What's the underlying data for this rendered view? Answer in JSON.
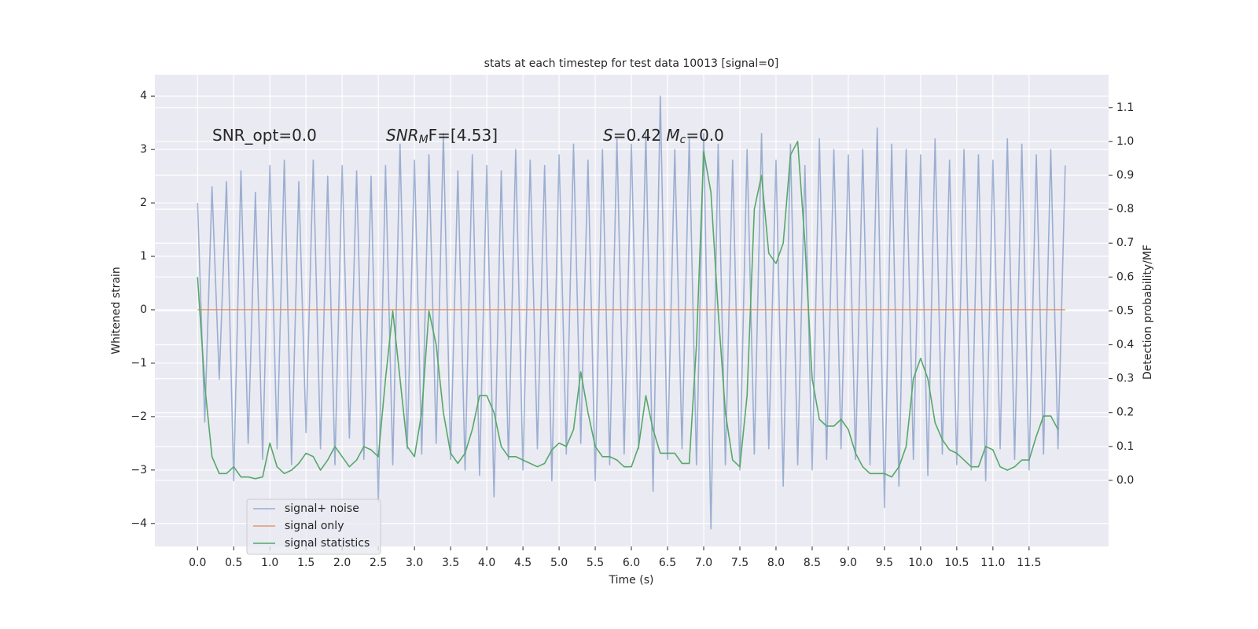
{
  "chart_data": {
    "type": "line",
    "title": "stats at each timestep for test data 10013 [signal=0]",
    "xlabel": "Time (s)",
    "ylabel": "Whitened strain",
    "y2label": "Detection probability/MF",
    "xlim": [
      -0.59,
      12.6
    ],
    "ylim": [
      -4.43,
      4.4
    ],
    "y2lim": [
      -0.195,
      1.197
    ],
    "xticks": [
      {
        "value": 0,
        "label": "0.0"
      },
      0.5,
      {
        "value": 1,
        "label": "1.0"
      },
      1.5,
      {
        "value": 2,
        "label": "2.0"
      },
      2.5,
      {
        "value": 3,
        "label": "3.0"
      },
      3.5,
      {
        "value": 4,
        "label": "4.0"
      },
      4.5,
      {
        "value": 5,
        "label": "5.0"
      },
      5.5,
      {
        "value": 6,
        "label": "6.0"
      },
      6.5,
      {
        "value": 7,
        "label": "7.0"
      },
      7.5,
      {
        "value": 8,
        "label": "8.0"
      },
      8.5,
      {
        "value": 9,
        "label": "9.0"
      },
      9.5,
      {
        "value": 10,
        "label": "10.0"
      },
      10.5,
      {
        "value": 11,
        "label": "11.0"
      },
      11.5
    ],
    "yticks": [
      {
        "value": -4,
        "label": "−4"
      },
      {
        "value": -3,
        "label": "−3"
      },
      {
        "value": -2,
        "label": "−2"
      },
      {
        "value": -1,
        "label": "−1"
      },
      0,
      1,
      2,
      3,
      4
    ],
    "y2ticks": [
      {
        "value": 0,
        "label": "0.0"
      },
      0.1,
      0.2,
      0.3,
      0.4,
      0.5,
      0.6,
      0.7,
      0.8,
      0.9,
      {
        "value": 1,
        "label": "1.0"
      },
      1.1
    ],
    "grid": true,
    "legend": "lower left",
    "background": "#eaeaf2",
    "annotations": [
      [
        {
          "text": "SNR_opt=0.0"
        }
      ],
      [
        {
          "text": "SNR",
          "style": "italic"
        },
        {
          "text": "M",
          "style": "sub"
        },
        {
          "text": "F=[4.53]"
        }
      ],
      [
        {
          "text": "S",
          "style": "italic"
        },
        {
          "text": "=0.42   "
        },
        {
          "text": "M",
          "style": "italic"
        },
        {
          "text": "c",
          "style": "sub"
        },
        {
          "text": "=0.0"
        }
      ]
    ],
    "series": [
      {
        "name": "signal+ noise",
        "color": "#4c72b0",
        "opacity": 0.5,
        "x": [
          0,
          0.1,
          0.2,
          0.3,
          0.4,
          0.5,
          0.6,
          0.7,
          0.8,
          0.9,
          1,
          1.1,
          1.2,
          1.3,
          1.4,
          1.5,
          1.6,
          1.7,
          1.8,
          1.9,
          2,
          2.1,
          2.2,
          2.3,
          2.4,
          2.5,
          2.6,
          2.7,
          2.8,
          2.9,
          3,
          3.1,
          3.2,
          3.3,
          3.4,
          3.5,
          3.6,
          3.7,
          3.8,
          3.9,
          4,
          4.1,
          4.2,
          4.3,
          4.4,
          4.5,
          4.6,
          4.7,
          4.8,
          4.9,
          5,
          5.1,
          5.2,
          5.3,
          5.4,
          5.5,
          5.6,
          5.7,
          5.8,
          5.9,
          6,
          6.1,
          6.2,
          6.3,
          6.4,
          6.5,
          6.6,
          6.7,
          6.8,
          6.9,
          7,
          7.1,
          7.2,
          7.3,
          7.4,
          7.5,
          7.6,
          7.7,
          7.8,
          7.9,
          8,
          8.1,
          8.2,
          8.3,
          8.4,
          8.5,
          8.6,
          8.7,
          8.8,
          8.9,
          9,
          9.1,
          9.2,
          9.3,
          9.4,
          9.5,
          9.6,
          9.7,
          9.8,
          9.9,
          10,
          10.1,
          10.2,
          10.3,
          10.4,
          10.5,
          10.6,
          10.7,
          10.8,
          10.9,
          11,
          11.1,
          11.2,
          11.3,
          11.4,
          11.5,
          11.6,
          11.7,
          11.8,
          11.9,
          12
        ],
        "values": [
          2.0,
          -2.1,
          2.3,
          -1.3,
          2.4,
          -3.2,
          2.6,
          -2.5,
          2.2,
          -2.8,
          2.7,
          -2.6,
          2.8,
          -2.9,
          2.4,
          -2.3,
          2.8,
          -2.6,
          2.5,
          -2.9,
          2.7,
          -2.4,
          2.6,
          -2.8,
          2.5,
          -3.6,
          2.7,
          -2.9,
          3.1,
          -2.6,
          2.8,
          -2.7,
          2.9,
          -2.5,
          3.3,
          -2.8,
          2.6,
          -3.0,
          2.9,
          -3.1,
          2.7,
          -3.5,
          2.6,
          -2.8,
          3.0,
          -3.0,
          2.8,
          -2.6,
          2.7,
          -3.2,
          2.9,
          -2.7,
          3.1,
          -2.5,
          2.8,
          -3.2,
          3.0,
          -2.9,
          3.2,
          -2.7,
          3.1,
          -2.6,
          3.3,
          -3.4,
          4.0,
          -2.8,
          3.0,
          -2.6,
          3.2,
          -2.9,
          3.3,
          -4.1,
          3.1,
          -2.9,
          2.8,
          -3.0,
          3.0,
          -2.7,
          3.3,
          -2.6,
          2.8,
          -3.3,
          3.1,
          -2.9,
          2.7,
          -3.0,
          3.2,
          -2.8,
          3.0,
          -2.6,
          2.9,
          -2.8,
          3.0,
          -2.9,
          3.4,
          -3.7,
          3.1,
          -3.3,
          3.0,
          -2.8,
          2.9,
          -3.1,
          3.2,
          -2.7,
          2.8,
          -2.9,
          3.0,
          -3.0,
          2.9,
          -3.2,
          2.8,
          -2.6,
          3.2,
          -2.8,
          3.1,
          -3.0,
          2.9,
          -2.7,
          3.0,
          -2.6,
          2.7
        ]
      },
      {
        "name": "signal only",
        "color": "#dd8452",
        "opacity": 0.8,
        "x": [
          0,
          12
        ],
        "values": [
          0,
          0
        ]
      },
      {
        "name": "signal statistics",
        "color": "#55a868",
        "opacity": 1,
        "axis": "y2",
        "x": [
          0,
          0.1,
          0.2,
          0.3,
          0.4,
          0.5,
          0.6,
          0.7,
          0.8,
          0.9,
          1,
          1.1,
          1.2,
          1.3,
          1.4,
          1.5,
          1.6,
          1.7,
          1.8,
          1.9,
          2,
          2.1,
          2.2,
          2.3,
          2.4,
          2.5,
          2.6,
          2.7,
          2.8,
          2.9,
          3,
          3.1,
          3.2,
          3.3,
          3.4,
          3.5,
          3.6,
          3.7,
          3.8,
          3.9,
          4,
          4.1,
          4.2,
          4.3,
          4.4,
          4.5,
          4.6,
          4.7,
          4.8,
          4.9,
          5,
          5.1,
          5.2,
          5.3,
          5.4,
          5.5,
          5.6,
          5.7,
          5.8,
          5.9,
          6,
          6.1,
          6.2,
          6.3,
          6.4,
          6.5,
          6.6,
          6.7,
          6.8,
          6.9,
          7,
          7.1,
          7.2,
          7.3,
          7.4,
          7.5,
          7.6,
          7.7,
          7.8,
          7.9,
          8,
          8.1,
          8.2,
          8.3,
          8.4,
          8.5,
          8.6,
          8.7,
          8.8,
          8.9,
          9,
          9.1,
          9.2,
          9.3,
          9.4,
          9.5,
          9.6,
          9.7,
          9.8,
          9.9,
          10,
          10.1,
          10.2,
          10.3,
          10.4,
          10.5,
          10.6,
          10.7,
          10.8,
          10.9,
          11,
          11.1,
          11.2,
          11.3,
          11.4,
          11.5,
          11.6,
          11.7,
          11.8,
          11.9
        ],
        "values": [
          0.6,
          0.28,
          0.07,
          0.02,
          0.02,
          0.04,
          0.01,
          0.01,
          0.005,
          0.01,
          0.11,
          0.04,
          0.02,
          0.03,
          0.05,
          0.08,
          0.07,
          0.03,
          0.06,
          0.1,
          0.07,
          0.04,
          0.06,
          0.1,
          0.09,
          0.07,
          0.3,
          0.5,
          0.3,
          0.1,
          0.07,
          0.2,
          0.5,
          0.4,
          0.2,
          0.08,
          0.05,
          0.08,
          0.15,
          0.25,
          0.25,
          0.2,
          0.1,
          0.07,
          0.07,
          0.06,
          0.05,
          0.04,
          0.05,
          0.09,
          0.11,
          0.1,
          0.15,
          0.32,
          0.2,
          0.1,
          0.07,
          0.07,
          0.06,
          0.04,
          0.04,
          0.1,
          0.25,
          0.15,
          0.08,
          0.08,
          0.08,
          0.05,
          0.05,
          0.4,
          0.97,
          0.85,
          0.5,
          0.2,
          0.06,
          0.04,
          0.25,
          0.8,
          0.9,
          0.67,
          0.64,
          0.7,
          0.96,
          1.0,
          0.7,
          0.3,
          0.18,
          0.16,
          0.16,
          0.18,
          0.15,
          0.08,
          0.04,
          0.02,
          0.02,
          0.02,
          0.01,
          0.04,
          0.1,
          0.3,
          0.36,
          0.3,
          0.17,
          0.12,
          0.09,
          0.08,
          0.06,
          0.04,
          0.04,
          0.1,
          0.09,
          0.04,
          0.03,
          0.04,
          0.06,
          0.06,
          0.13,
          0.19,
          0.19,
          0.15
        ]
      }
    ]
  }
}
